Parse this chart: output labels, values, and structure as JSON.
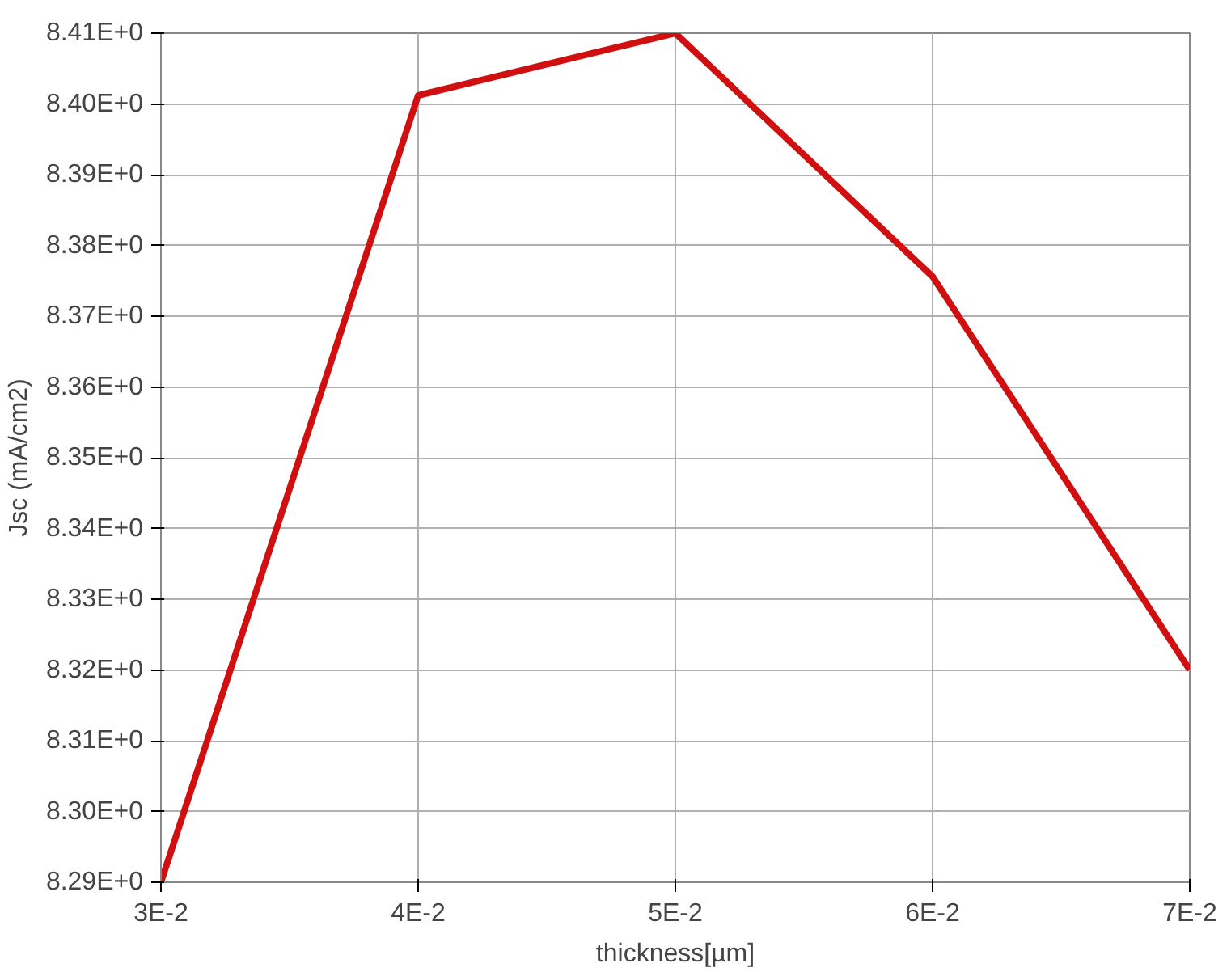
{
  "chart_data": {
    "type": "line",
    "xlabel": "thickness[µm]",
    "ylabel": "Jsc (mA/cm2)",
    "x": [
      0.03,
      0.04,
      0.05,
      0.06,
      0.07
    ],
    "series": [
      {
        "color": "#d01010",
        "values": [
          8.29,
          8.4012,
          8.41,
          8.3756,
          8.32
        ]
      }
    ],
    "xlim": [
      0.03,
      0.07
    ],
    "ylim": [
      8.29,
      8.41
    ],
    "xticks": [
      {
        "value": 0.03,
        "label": "3E-2"
      },
      {
        "value": 0.04,
        "label": "4E-2"
      },
      {
        "value": 0.05,
        "label": "5E-2"
      },
      {
        "value": 0.06,
        "label": "6E-2"
      },
      {
        "value": 0.07,
        "label": "7E-2"
      }
    ],
    "yticks": [
      {
        "value": 8.29,
        "label": "8.29E+0"
      },
      {
        "value": 8.3,
        "label": "8.30E+0"
      },
      {
        "value": 8.31,
        "label": "8.31E+0"
      },
      {
        "value": 8.32,
        "label": "8.32E+0"
      },
      {
        "value": 8.33,
        "label": "8.33E+0"
      },
      {
        "value": 8.34,
        "label": "8.34E+0"
      },
      {
        "value": 8.35,
        "label": "8.35E+0"
      },
      {
        "value": 8.36,
        "label": "8.36E+0"
      },
      {
        "value": 8.37,
        "label": "8.37E+0"
      },
      {
        "value": 8.38,
        "label": "8.38E+0"
      },
      {
        "value": 8.39,
        "label": "8.39E+0"
      },
      {
        "value": 8.4,
        "label": "8.40E+0"
      },
      {
        "value": 8.41,
        "label": "8.41E+0"
      }
    ],
    "grid": true,
    "marker": "none",
    "line_style": "solid"
  }
}
